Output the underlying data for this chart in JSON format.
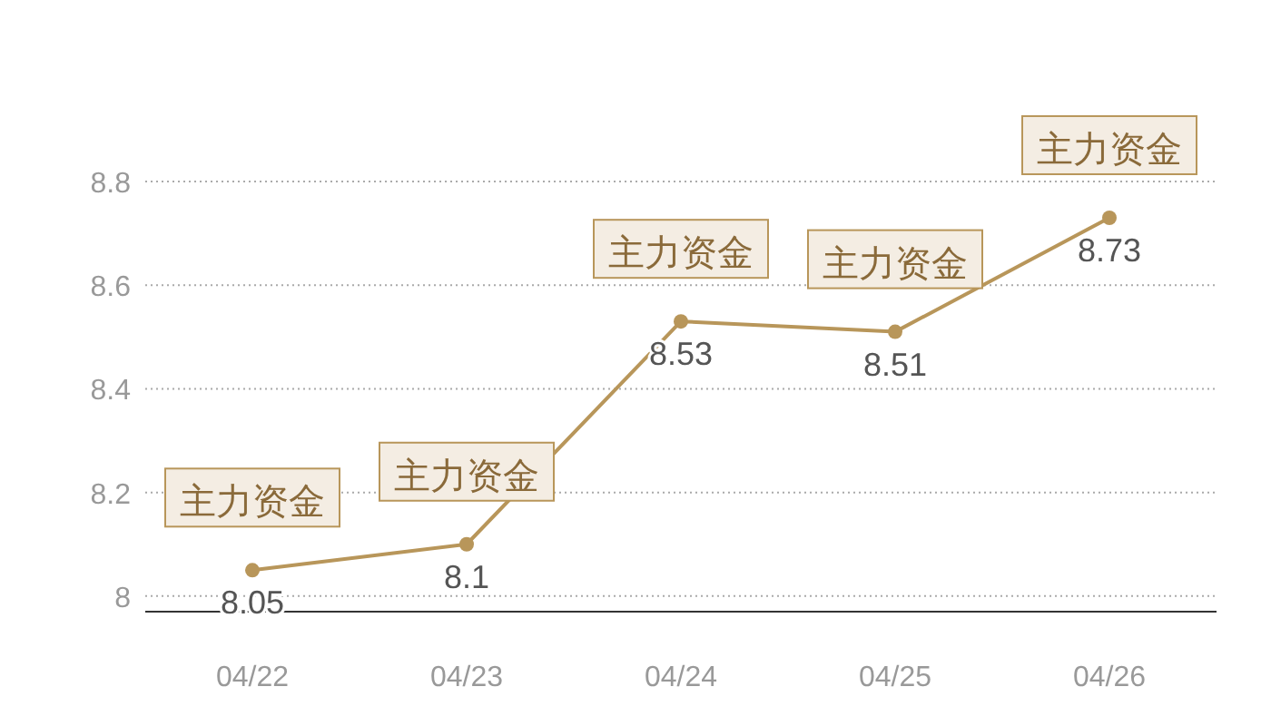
{
  "chart_data": {
    "type": "line",
    "categories": [
      "04/22",
      "04/23",
      "04/24",
      "04/25",
      "04/26"
    ],
    "values": [
      8.05,
      8.1,
      8.53,
      8.51,
      8.73
    ],
    "color": "#b8965a",
    "marker": "circle",
    "line_style": "solid",
    "data_labels": true,
    "ylim": [
      7.97,
      8.8
    ],
    "yticks": [
      8,
      8.2,
      8.4,
      8.6,
      8.8
    ],
    "grid": "y",
    "annotations": [
      {
        "text": "主力资金",
        "x": "04/22",
        "y": 8.05
      },
      {
        "text": "主力资金",
        "x": "04/23",
        "y": 8.1
      },
      {
        "text": "主力资金",
        "x": "04/24",
        "y": 8.53
      },
      {
        "text": "主力资金",
        "x": "04/25",
        "y": 8.51
      },
      {
        "text": "主力资金",
        "x": "04/26",
        "y": 8.73
      }
    ]
  }
}
